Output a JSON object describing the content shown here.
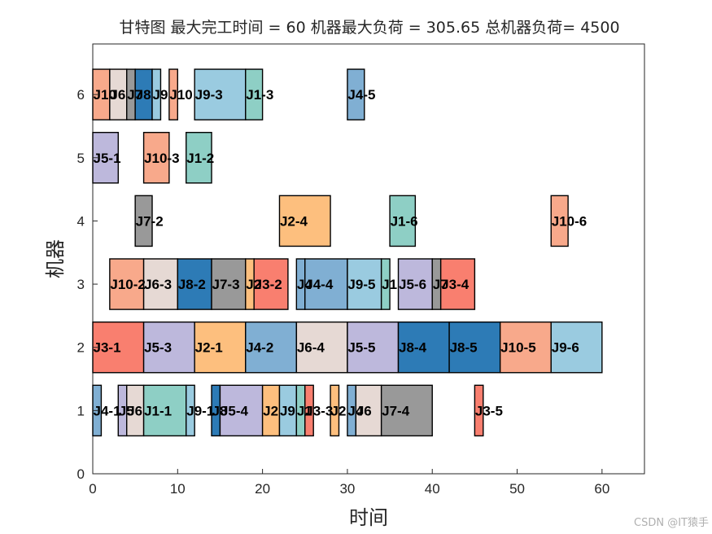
{
  "chart_data": {
    "type": "gantt",
    "title": "甘特图 最大完工时间 = 60 机器最大负荷 = 305.65 总机器负荷= 4500",
    "xlabel": "时间",
    "ylabel": "机器",
    "xlim": [
      0,
      65
    ],
    "ylim": [
      0,
      6.8
    ],
    "xticks": [
      0,
      10,
      20,
      30,
      40,
      50,
      60
    ],
    "yticks": [
      0,
      1,
      2,
      3,
      4,
      5,
      6
    ],
    "bar_height": 0.8,
    "job_colors": {
      "J1": "#8ecfc5",
      "J2": "#fdbf7e",
      "J3": "#f97f6f",
      "J4": "#80afd3",
      "J5": "#bdb8dc",
      "J6": "#e6d9d4",
      "J7": "#999999",
      "J8": "#2d7bb6",
      "J9": "#9acbe0",
      "J10": "#f8a98b"
    },
    "tasks": [
      {
        "machine": 6,
        "start": 0,
        "end": 2,
        "job": "J10",
        "label": "J10"
      },
      {
        "machine": 6,
        "start": 2,
        "end": 4,
        "job": "J6",
        "label": "J6"
      },
      {
        "machine": 6,
        "start": 4,
        "end": 5,
        "job": "J7",
        "label": "J7"
      },
      {
        "machine": 6,
        "start": 5,
        "end": 7,
        "job": "J8",
        "label": "J8"
      },
      {
        "machine": 6,
        "start": 7,
        "end": 8,
        "job": "J9",
        "label": "J9"
      },
      {
        "machine": 6,
        "start": 9,
        "end": 10,
        "job": "J10",
        "label": "J10"
      },
      {
        "machine": 6,
        "start": 12,
        "end": 18,
        "job": "J9",
        "label": "J9-3"
      },
      {
        "machine": 6,
        "start": 18,
        "end": 20,
        "job": "J1",
        "label": "J1-3"
      },
      {
        "machine": 6,
        "start": 30,
        "end": 32,
        "job": "J4",
        "label": "J4-5"
      },
      {
        "machine": 5,
        "start": 0,
        "end": 3,
        "job": "J5",
        "label": "J5-1"
      },
      {
        "machine": 5,
        "start": 6,
        "end": 9,
        "job": "J10",
        "label": "J10-3"
      },
      {
        "machine": 5,
        "start": 11,
        "end": 14,
        "job": "J1",
        "label": "J1-2"
      },
      {
        "machine": 4,
        "start": 5,
        "end": 7,
        "job": "J7",
        "label": "J7-2"
      },
      {
        "machine": 4,
        "start": 22,
        "end": 28,
        "job": "J2",
        "label": "J2-4"
      },
      {
        "machine": 4,
        "start": 35,
        "end": 38,
        "job": "J1",
        "label": "J1-6"
      },
      {
        "machine": 4,
        "start": 54,
        "end": 56,
        "job": "J10",
        "label": "J10-6"
      },
      {
        "machine": 3,
        "start": 2,
        "end": 6,
        "job": "J10",
        "label": "J10-2"
      },
      {
        "machine": 3,
        "start": 6,
        "end": 10,
        "job": "J6",
        "label": "J6-3"
      },
      {
        "machine": 3,
        "start": 10,
        "end": 14,
        "job": "J8",
        "label": "J8-2"
      },
      {
        "machine": 3,
        "start": 14,
        "end": 18,
        "job": "J7",
        "label": "J7-3"
      },
      {
        "machine": 3,
        "start": 18,
        "end": 19,
        "job": "J2",
        "label": "J2"
      },
      {
        "machine": 3,
        "start": 19,
        "end": 23,
        "job": "J3",
        "label": "J3-2"
      },
      {
        "machine": 3,
        "start": 24,
        "end": 25,
        "job": "J4",
        "label": "J4"
      },
      {
        "machine": 3,
        "start": 25,
        "end": 30,
        "job": "J4",
        "label": "J4-4"
      },
      {
        "machine": 3,
        "start": 30,
        "end": 34,
        "job": "J9",
        "label": "J9-5"
      },
      {
        "machine": 3,
        "start": 34,
        "end": 35,
        "job": "J1",
        "label": "J1"
      },
      {
        "machine": 3,
        "start": 36,
        "end": 40,
        "job": "J5",
        "label": "J5-6"
      },
      {
        "machine": 3,
        "start": 40,
        "end": 41,
        "job": "J7",
        "label": "J7"
      },
      {
        "machine": 3,
        "start": 41,
        "end": 45,
        "job": "J3",
        "label": "J3-4"
      },
      {
        "machine": 2,
        "start": 0,
        "end": 6,
        "job": "J3",
        "label": "J3-1"
      },
      {
        "machine": 2,
        "start": 6,
        "end": 12,
        "job": "J5",
        "label": "J5-3"
      },
      {
        "machine": 2,
        "start": 12,
        "end": 18,
        "job": "J2",
        "label": "J2-1"
      },
      {
        "machine": 2,
        "start": 18,
        "end": 24,
        "job": "J4",
        "label": "J4-2"
      },
      {
        "machine": 2,
        "start": 24,
        "end": 30,
        "job": "J6",
        "label": "J6-4"
      },
      {
        "machine": 2,
        "start": 30,
        "end": 36,
        "job": "J5",
        "label": "J5-5"
      },
      {
        "machine": 2,
        "start": 36,
        "end": 42,
        "job": "J8",
        "label": "J8-4"
      },
      {
        "machine": 2,
        "start": 42,
        "end": 48,
        "job": "J8",
        "label": "J8-5"
      },
      {
        "machine": 2,
        "start": 48,
        "end": 54,
        "job": "J10",
        "label": "J10-5"
      },
      {
        "machine": 2,
        "start": 54,
        "end": 60,
        "job": "J9",
        "label": "J9-6"
      },
      {
        "machine": 1,
        "start": 0,
        "end": 1,
        "job": "J4",
        "label": "J4-1"
      },
      {
        "machine": 1,
        "start": 3,
        "end": 4,
        "job": "J5",
        "label": "J5"
      },
      {
        "machine": 1,
        "start": 4,
        "end": 6,
        "job": "J6",
        "label": "J6"
      },
      {
        "machine": 1,
        "start": 6,
        "end": 11,
        "job": "J1",
        "label": "J1-1"
      },
      {
        "machine": 1,
        "start": 11,
        "end": 12,
        "job": "J9",
        "label": "J9-1"
      },
      {
        "machine": 1,
        "start": 14,
        "end": 15,
        "job": "J8",
        "label": "J8"
      },
      {
        "machine": 1,
        "start": 15,
        "end": 20,
        "job": "J5",
        "label": "J5-4"
      },
      {
        "machine": 1,
        "start": 20,
        "end": 22,
        "job": "J2",
        "label": "J2"
      },
      {
        "machine": 1,
        "start": 22,
        "end": 24,
        "job": "J9",
        "label": "J9"
      },
      {
        "machine": 1,
        "start": 24,
        "end": 25,
        "job": "J1",
        "label": "J1"
      },
      {
        "machine": 1,
        "start": 25,
        "end": 26,
        "job": "J3",
        "label": "J3-3"
      },
      {
        "machine": 1,
        "start": 28,
        "end": 29,
        "job": "J2",
        "label": "J2"
      },
      {
        "machine": 1,
        "start": 30,
        "end": 31,
        "job": "J4",
        "label": "J4"
      },
      {
        "machine": 1,
        "start": 31,
        "end": 34,
        "job": "J6",
        "label": "J6"
      },
      {
        "machine": 1,
        "start": 34,
        "end": 40,
        "job": "J7",
        "label": "J7-4"
      },
      {
        "machine": 1,
        "start": 45,
        "end": 46,
        "job": "J3",
        "label": "J3-5"
      }
    ]
  },
  "watermark": "CSDN @IT猿手"
}
